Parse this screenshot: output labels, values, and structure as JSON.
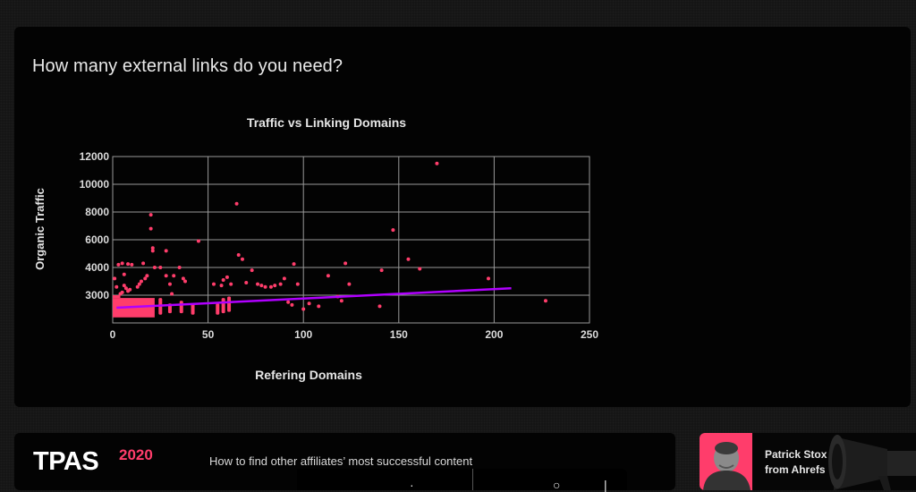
{
  "slide": {
    "title": "How many external links do you need?"
  },
  "chart_data": {
    "type": "scatter",
    "title": "Traffic vs Linking Domains",
    "xlabel": "Refering Domains",
    "ylabel": "Organic Traffic",
    "xlim": [
      0,
      250
    ],
    "x_ticks": [
      0,
      50,
      100,
      150,
      200,
      250
    ],
    "y_ticks": [
      3000,
      4000,
      6000,
      8000,
      10000,
      12000
    ],
    "y_axis_note": "non-linear tick spacing; ticks equally spaced on screen",
    "grid": true,
    "legend": null,
    "point_color": "#ff3d6b",
    "trend_color": "#b000ff",
    "dense_cluster": {
      "x_range": [
        0,
        22
      ],
      "y_range": [
        2200,
        2900
      ]
    },
    "points": [
      [
        1,
        3600
      ],
      [
        3,
        4200
      ],
      [
        5,
        4300
      ],
      [
        8,
        4250
      ],
      [
        2,
        3300
      ],
      [
        4,
        3050
      ],
      [
        5,
        3100
      ],
      [
        6,
        3350
      ],
      [
        7,
        3250
      ],
      [
        8,
        3150
      ],
      [
        9,
        3200
      ],
      [
        6,
        3750
      ],
      [
        10,
        4200
      ],
      [
        16,
        4300
      ],
      [
        13,
        3300
      ],
      [
        14,
        3400
      ],
      [
        15,
        3500
      ],
      [
        17,
        3600
      ],
      [
        18,
        3700
      ],
      [
        20,
        7800
      ],
      [
        20,
        6800
      ],
      [
        21,
        5400
      ],
      [
        21,
        5200
      ],
      [
        22,
        4000
      ],
      [
        25,
        4000
      ],
      [
        28,
        5200
      ],
      [
        28,
        3700
      ],
      [
        30,
        3400
      ],
      [
        31,
        3050
      ],
      [
        32,
        3700
      ],
      [
        35,
        4000
      ],
      [
        37,
        3600
      ],
      [
        38,
        3500
      ],
      [
        45,
        5900
      ],
      [
        53,
        3400
      ],
      [
        57,
        3350
      ],
      [
        58,
        3550
      ],
      [
        60,
        3650
      ],
      [
        62,
        3400
      ],
      [
        65,
        8600
      ],
      [
        66,
        4900
      ],
      [
        68,
        4600
      ],
      [
        70,
        3450
      ],
      [
        73,
        3900
      ],
      [
        76,
        3400
      ],
      [
        78,
        3350
      ],
      [
        80,
        3300
      ],
      [
        83,
        3300
      ],
      [
        85,
        3350
      ],
      [
        88,
        3400
      ],
      [
        90,
        3600
      ],
      [
        92,
        2750
      ],
      [
        94,
        2650
      ],
      [
        95,
        4250
      ],
      [
        97,
        3400
      ],
      [
        100,
        2500
      ],
      [
        103,
        2700
      ],
      [
        108,
        2600
      ],
      [
        113,
        3700
      ],
      [
        118,
        2950
      ],
      [
        120,
        2800
      ],
      [
        122,
        4300
      ],
      [
        124,
        3400
      ],
      [
        140,
        2600
      ],
      [
        141,
        3900
      ],
      [
        147,
        6700
      ],
      [
        155,
        4600
      ],
      [
        161,
        3950
      ],
      [
        170,
        11500
      ],
      [
        197,
        3600
      ],
      [
        227,
        2800
      ]
    ],
    "column_clusters": [
      {
        "x": 25,
        "y_range": [
          2300,
          2900
        ]
      },
      {
        "x": 30,
        "y_range": [
          2350,
          2700
        ]
      },
      {
        "x": 36,
        "y_range": [
          2350,
          2800
        ]
      },
      {
        "x": 42,
        "y_range": [
          2300,
          2700
        ]
      },
      {
        "x": 55,
        "y_range": [
          2300,
          2700
        ]
      },
      {
        "x": 58,
        "y_range": [
          2350,
          2900
        ]
      },
      {
        "x": 61,
        "y_range": [
          2400,
          2950
        ]
      }
    ],
    "trend_line": {
      "x": [
        2,
        209
      ],
      "y": [
        2550,
        3250
      ]
    }
  },
  "footer": {
    "brand": "TPAS",
    "brand_year": "2020",
    "talk_title": "How to find other affiliates’ most successful content",
    "speaker_name_line1": "Patrick Stox",
    "speaker_name_line2": "from Ahrefs"
  }
}
